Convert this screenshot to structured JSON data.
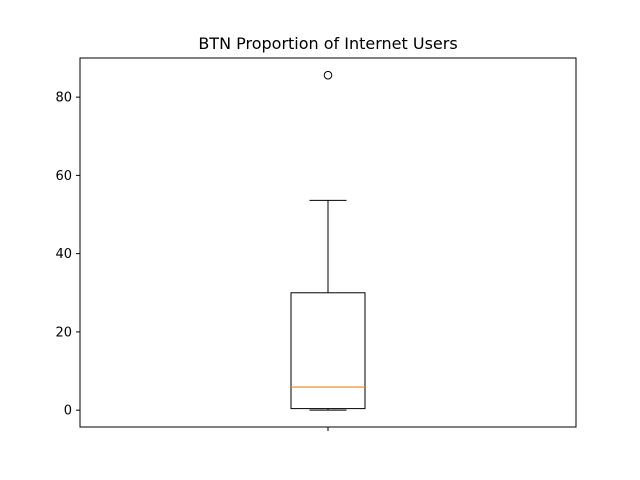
{
  "chart_data": {
    "type": "boxplot",
    "title": "BTN Proportion of Internet Users",
    "xlabel": "",
    "ylabel": "",
    "ylim": [
      -4.3,
      90.0
    ],
    "y_ticks": [
      0,
      20,
      40,
      60,
      80
    ],
    "grid": false,
    "series": [
      {
        "whisker_low": 0.0,
        "q1": 0.4,
        "median": 5.9,
        "q3": 30.0,
        "whisker_high": 53.6,
        "outliers": [
          85.6
        ]
      }
    ],
    "colors": {
      "box": "#000000",
      "median": "#ff7f0e",
      "outlier": "#000000"
    }
  }
}
